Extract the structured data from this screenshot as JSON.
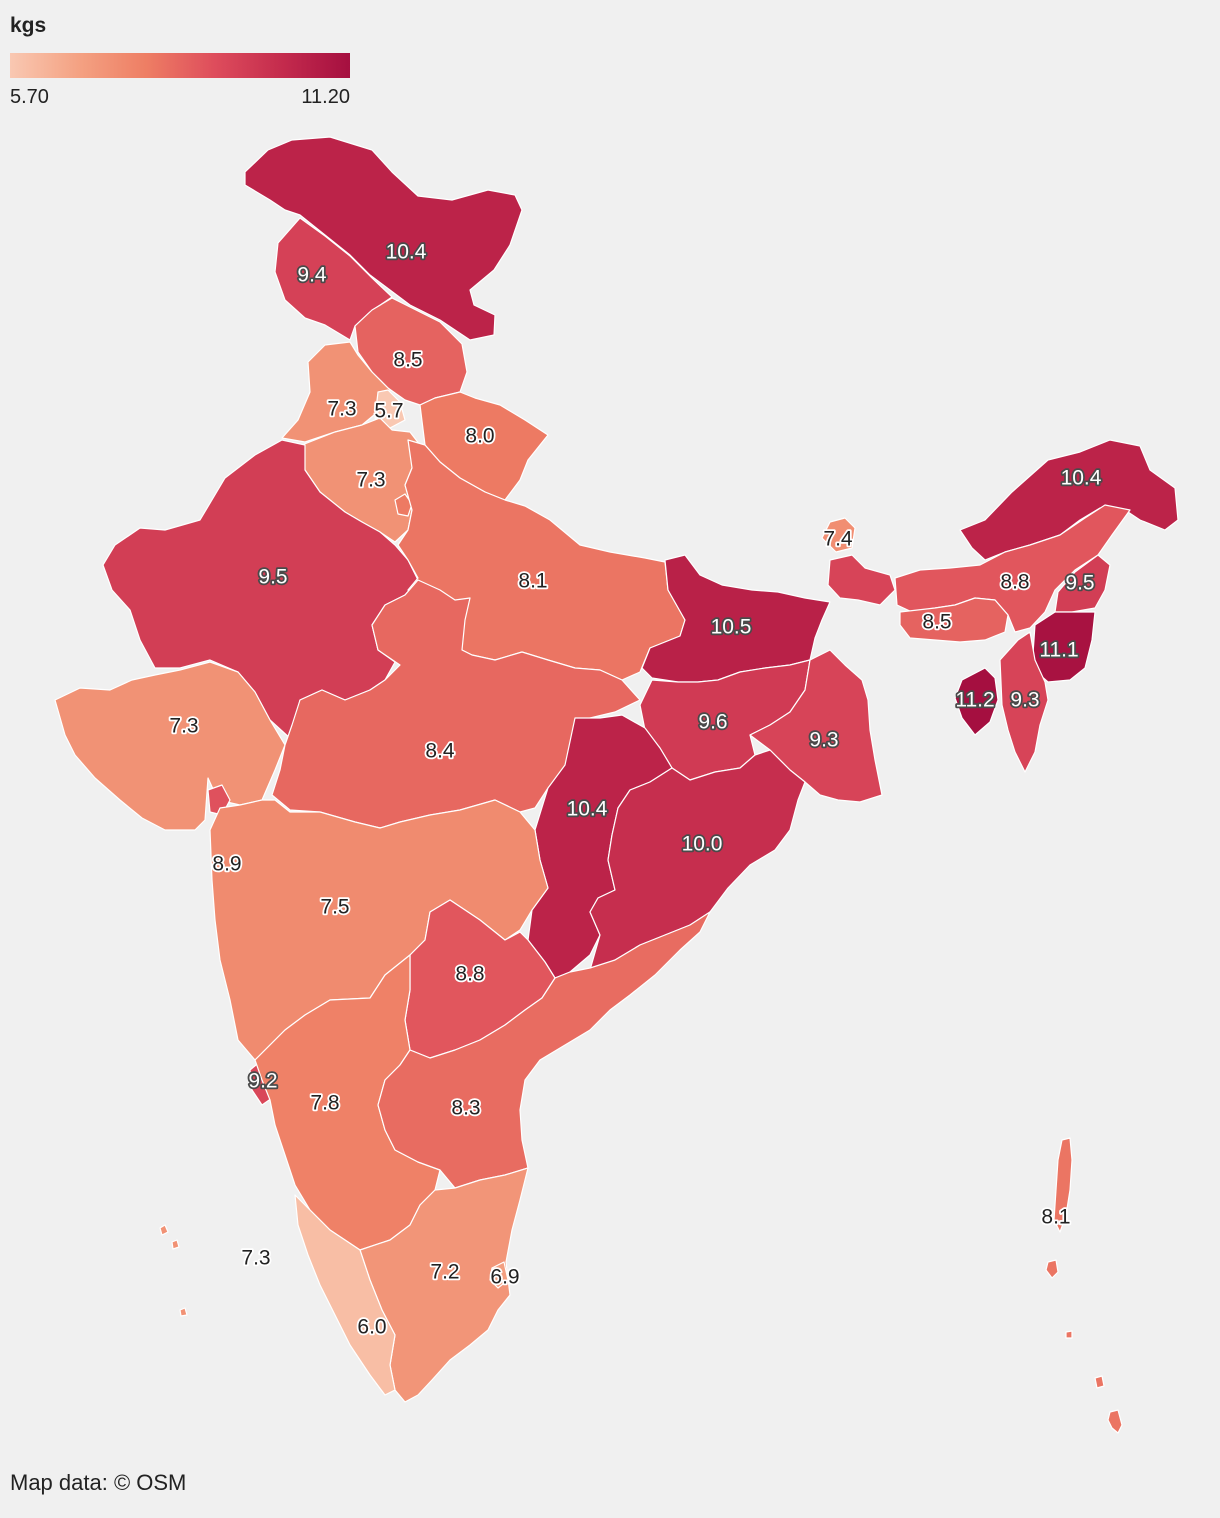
{
  "legend": {
    "title": "kgs",
    "min_label": "5.70",
    "max_label": "11.20",
    "min": 5.7,
    "max": 11.2,
    "colors": [
      "#f9c8b2",
      "#f4a283",
      "#ee7e64",
      "#de4d5c",
      "#c42b4d",
      "#a50f40"
    ]
  },
  "attribution": "Map data: © OSM",
  "regions": [
    {
      "id": "jammu-kashmir",
      "value": 10.4,
      "label": "10.4"
    },
    {
      "id": "himachal-pradesh",
      "value": 9.4,
      "label": "9.4"
    },
    {
      "id": "uttarakhand",
      "value": 8.5,
      "label": "8.5"
    },
    {
      "id": "punjab",
      "value": 7.3,
      "label": "7.3"
    },
    {
      "id": "chandigarh",
      "value": 5.7,
      "label": "5.7"
    },
    {
      "id": "haryana",
      "value": 7.3,
      "label": "7.3"
    },
    {
      "id": "delhi",
      "value": 8.0,
      "label": "8.0"
    },
    {
      "id": "rajasthan",
      "value": 9.5,
      "label": "9.5"
    },
    {
      "id": "uttar-pradesh",
      "value": 8.1,
      "label": "8.1"
    },
    {
      "id": "bihar",
      "value": 10.5,
      "label": "10.5"
    },
    {
      "id": "sikkim",
      "value": 7.4,
      "label": "7.4"
    },
    {
      "id": "arunachal-pradesh",
      "value": 10.4,
      "label": "10.4"
    },
    {
      "id": "assam",
      "value": 8.8,
      "label": "8.8"
    },
    {
      "id": "nagaland",
      "value": 9.5,
      "label": "9.5"
    },
    {
      "id": "meghalaya",
      "value": 8.5,
      "label": "8.5"
    },
    {
      "id": "manipur",
      "value": 11.1,
      "label": "11.1"
    },
    {
      "id": "tripura",
      "value": 11.2,
      "label": "11.2"
    },
    {
      "id": "mizoram",
      "value": 9.3,
      "label": "9.3"
    },
    {
      "id": "gujarat",
      "value": 7.3,
      "label": "7.3"
    },
    {
      "id": "madhya-pradesh",
      "value": 8.4,
      "label": "8.4"
    },
    {
      "id": "jharkhand",
      "value": 9.6,
      "label": "9.6"
    },
    {
      "id": "west-bengal",
      "value": 9.3,
      "label": "9.3"
    },
    {
      "id": "chhattisgarh",
      "value": 10.4,
      "label": "10.4"
    },
    {
      "id": "odisha",
      "value": 10.0,
      "label": "10.0"
    },
    {
      "id": "dadra-daman-diu",
      "value": 8.9,
      "label": "8.9"
    },
    {
      "id": "maharashtra",
      "value": 7.5,
      "label": "7.5"
    },
    {
      "id": "telangana",
      "value": 8.8,
      "label": "8.8"
    },
    {
      "id": "goa",
      "value": 9.2,
      "label": "9.2"
    },
    {
      "id": "karnataka",
      "value": 7.8,
      "label": "7.8"
    },
    {
      "id": "andhra-pradesh",
      "value": 8.3,
      "label": "8.3"
    },
    {
      "id": "lakshadweep",
      "value": 7.3,
      "label": "7.3"
    },
    {
      "id": "tamil-nadu",
      "value": 7.2,
      "label": "7.2"
    },
    {
      "id": "puducherry",
      "value": 6.9,
      "label": "6.9"
    },
    {
      "id": "kerala",
      "value": 6.0,
      "label": "6.0"
    },
    {
      "id": "andaman-nicobar",
      "value": 8.1,
      "label": "8.1"
    }
  ]
}
